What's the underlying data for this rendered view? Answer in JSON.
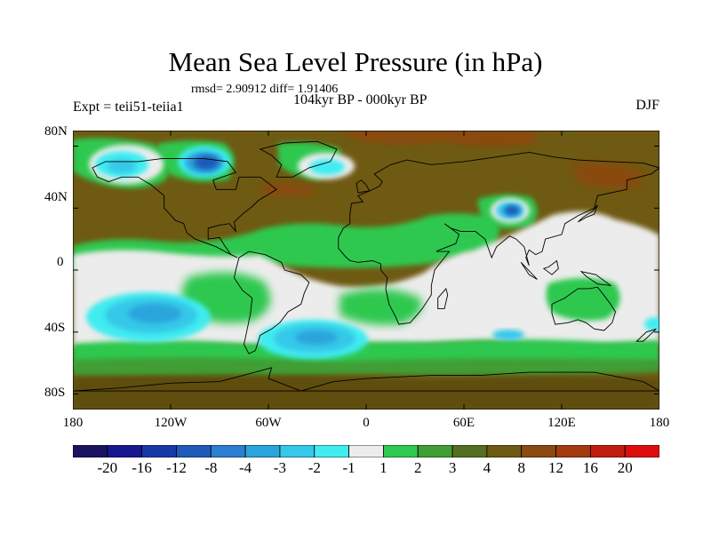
{
  "header": {
    "title": "Mean Sea Level Pressure (in hPa)",
    "stats": "rmsd= 2.90912 diff= 1.91406",
    "period": "104kyr BP - 000kyr BP",
    "experiment": "Expt = teii51-teiia1",
    "season": "DJF"
  },
  "axes": {
    "y_ticks": [
      "80N",
      "40N",
      "0",
      "40S",
      "80S"
    ],
    "x_ticks": [
      "180",
      "120W",
      "60W",
      "0",
      "60E",
      "120E",
      "180"
    ]
  },
  "colorbar": {
    "labels": [
      "-20",
      "-16",
      "-12",
      "-8",
      "-4",
      "-3",
      "-2",
      "-1",
      "1",
      "2",
      "3",
      "4",
      "8",
      "12",
      "16",
      "20"
    ],
    "colors": [
      "#1a1460",
      "#17178f",
      "#1838a8",
      "#1f5ab8",
      "#2b7ed0",
      "#2aa4dc",
      "#35c8e8",
      "#40ecf0",
      "#ececec",
      "#2fc850",
      "#3f9e35",
      "#556f22",
      "#6e5a12",
      "#8a4a10",
      "#a43a0e",
      "#c01d10",
      "#de0d0d"
    ]
  },
  "map_colors": {
    "base": "#6e5a12",
    "land_dark": "#5e4d10",
    "green": "#2fc850",
    "dark_green": "#3f9e35",
    "white": "#ececec",
    "light_cyan": "#40ecf0",
    "cyan": "#35c8e8",
    "blue": "#2aa4dc",
    "deep_blue": "#1f5ab8",
    "red_brown": "#8a4a10"
  }
}
